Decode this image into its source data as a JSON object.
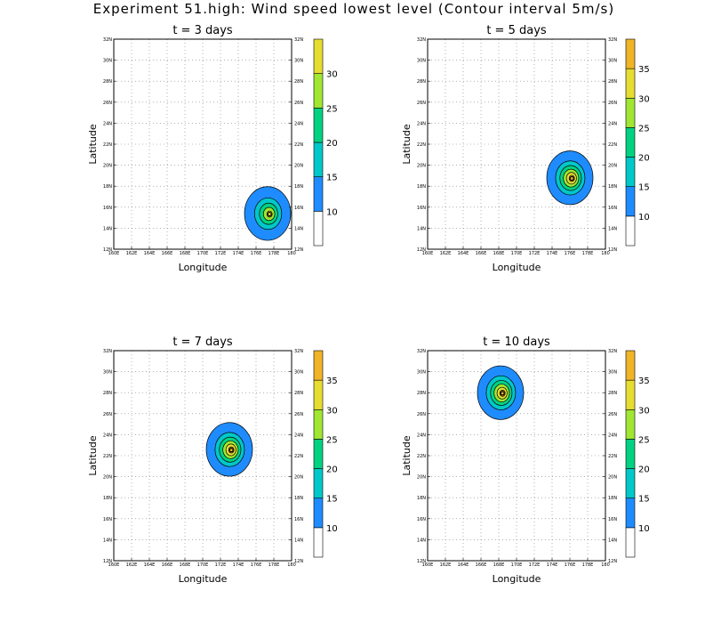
{
  "title": "Experiment 51.high: Wind speed lowest level (Contour interval 5m/s)",
  "colors": {
    "level_5": "#ffffff",
    "level_10": "#1e8cff",
    "level_15": "#00c8c8",
    "level_20": "#00d282",
    "level_25": "#a0e632",
    "level_30": "#e6dc32",
    "level_35": "#f0b428",
    "contour": "#000000",
    "grid": "#808080"
  },
  "chart_data": [
    {
      "type": "contour",
      "title": "t = 3 days",
      "xlabel": "Longitude",
      "ylabel": "Latitude",
      "xlim": [
        160,
        180
      ],
      "ylim": [
        12,
        32
      ],
      "x_ticks": [
        "160E",
        "162E",
        "164E",
        "166E",
        "168E",
        "170E",
        "172E",
        "174E",
        "176E",
        "178E",
        "180"
      ],
      "y_ticks": [
        "12N",
        "14N",
        "16N",
        "18N",
        "20N",
        "22N",
        "24N",
        "26N",
        "28N",
        "30N",
        "32N"
      ],
      "grid": true,
      "legend": "right",
      "colorbar_levels": [
        5,
        10,
        15,
        20,
        25,
        30,
        35
      ],
      "colorbar_labels": [
        "10",
        "15",
        "20",
        "25",
        "30"
      ],
      "contour_interval": 5,
      "vortex": {
        "center_lon": 177.3,
        "center_lat": 15.4,
        "max_speed": 35
      }
    },
    {
      "type": "contour",
      "title": "t = 5 days",
      "xlabel": "Longitude",
      "ylabel": "Latitude",
      "xlim": [
        160,
        180
      ],
      "ylim": [
        12,
        32
      ],
      "x_ticks": [
        "160E",
        "162E",
        "164E",
        "166E",
        "168E",
        "170E",
        "172E",
        "174E",
        "176E",
        "178E",
        "180"
      ],
      "y_ticks": [
        "12N",
        "14N",
        "16N",
        "18N",
        "20N",
        "22N",
        "24N",
        "26N",
        "28N",
        "30N",
        "32N"
      ],
      "grid": true,
      "legend": "right",
      "colorbar_levels": [
        5,
        10,
        15,
        20,
        25,
        30,
        35,
        40
      ],
      "colorbar_labels": [
        "10",
        "15",
        "20",
        "25",
        "30",
        "35"
      ],
      "contour_interval": 5,
      "vortex": {
        "center_lon": 176.0,
        "center_lat": 18.8,
        "max_speed": 40
      }
    },
    {
      "type": "contour",
      "title": "t = 7 days",
      "xlabel": "Longitude",
      "ylabel": "Latitude",
      "xlim": [
        160,
        180
      ],
      "ylim": [
        12,
        32
      ],
      "x_ticks": [
        "160E",
        "162E",
        "164E",
        "166E",
        "168E",
        "170E",
        "172E",
        "174E",
        "176E",
        "178E",
        "180"
      ],
      "y_ticks": [
        "12N",
        "14N",
        "16N",
        "18N",
        "20N",
        "22N",
        "24N",
        "26N",
        "28N",
        "30N",
        "32N"
      ],
      "grid": true,
      "legend": "right",
      "colorbar_levels": [
        5,
        10,
        15,
        20,
        25,
        30,
        35,
        40
      ],
      "colorbar_labels": [
        "10",
        "15",
        "20",
        "25",
        "30",
        "35"
      ],
      "contour_interval": 5,
      "vortex": {
        "center_lon": 173.0,
        "center_lat": 22.6,
        "max_speed": 40
      }
    },
    {
      "type": "contour",
      "title": "t = 10 days",
      "xlabel": "Longitude",
      "ylabel": "Latitude",
      "xlim": [
        160,
        180
      ],
      "ylim": [
        12,
        32
      ],
      "x_ticks": [
        "160E",
        "162E",
        "164E",
        "166E",
        "168E",
        "170E",
        "172E",
        "174E",
        "176E",
        "178E",
        "180"
      ],
      "y_ticks": [
        "12N",
        "14N",
        "16N",
        "18N",
        "20N",
        "22N",
        "24N",
        "26N",
        "28N",
        "30N",
        "32N"
      ],
      "grid": true,
      "legend": "right",
      "colorbar_levels": [
        5,
        10,
        15,
        20,
        25,
        30,
        35,
        40
      ],
      "colorbar_labels": [
        "10",
        "15",
        "20",
        "25",
        "30",
        "35"
      ],
      "contour_interval": 5,
      "vortex": {
        "center_lon": 168.2,
        "center_lat": 28.0,
        "max_speed": 40
      }
    }
  ]
}
